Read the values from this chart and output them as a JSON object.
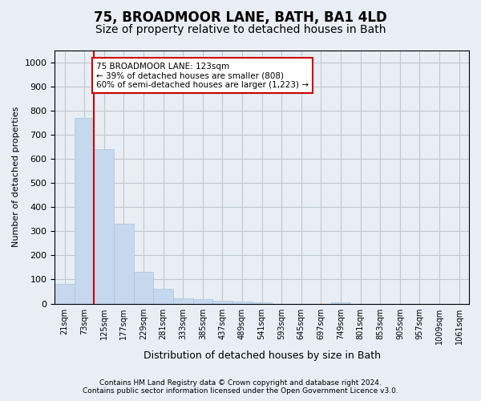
{
  "title": "75, BROADMOOR LANE, BATH, BA1 4LD",
  "subtitle": "Size of property relative to detached houses in Bath",
  "xlabel": "Distribution of detached houses by size in Bath",
  "ylabel": "Number of detached properties",
  "footer_line1": "Contains HM Land Registry data © Crown copyright and database right 2024.",
  "footer_line2": "Contains public sector information licensed under the Open Government Licence v3.0.",
  "bin_labels": [
    "21sqm",
    "73sqm",
    "125sqm",
    "177sqm",
    "229sqm",
    "281sqm",
    "333sqm",
    "385sqm",
    "437sqm",
    "489sqm",
    "541sqm",
    "593sqm",
    "645sqm",
    "697sqm",
    "749sqm",
    "801sqm",
    "853sqm",
    "905sqm",
    "957sqm",
    "1009sqm",
    "1061sqm"
  ],
  "bar_values": [
    80,
    770,
    640,
    330,
    130,
    60,
    22,
    18,
    12,
    8,
    5,
    0,
    0,
    0,
    6,
    0,
    0,
    0,
    0,
    0,
    0
  ],
  "bar_color": "#c5d8ed",
  "bar_edge_color": "#aac4de",
  "vline_position": 1.5,
  "vline_color": "#cc0000",
  "annotation_text": "75 BROADMOOR LANE: 123sqm\n← 39% of detached houses are smaller (808)\n60% of semi-detached houses are larger (1,223) →",
  "annotation_box_color": "#ffffff",
  "annotation_box_edge": "#cc0000",
  "ylim": [
    0,
    1050
  ],
  "yticks": [
    0,
    100,
    200,
    300,
    400,
    500,
    600,
    700,
    800,
    900,
    1000
  ],
  "grid_color": "#c0c8d0",
  "bg_color": "#e8eef4",
  "plot_bg_color": "#e8eef4",
  "title_fontsize": 12,
  "subtitle_fontsize": 10
}
